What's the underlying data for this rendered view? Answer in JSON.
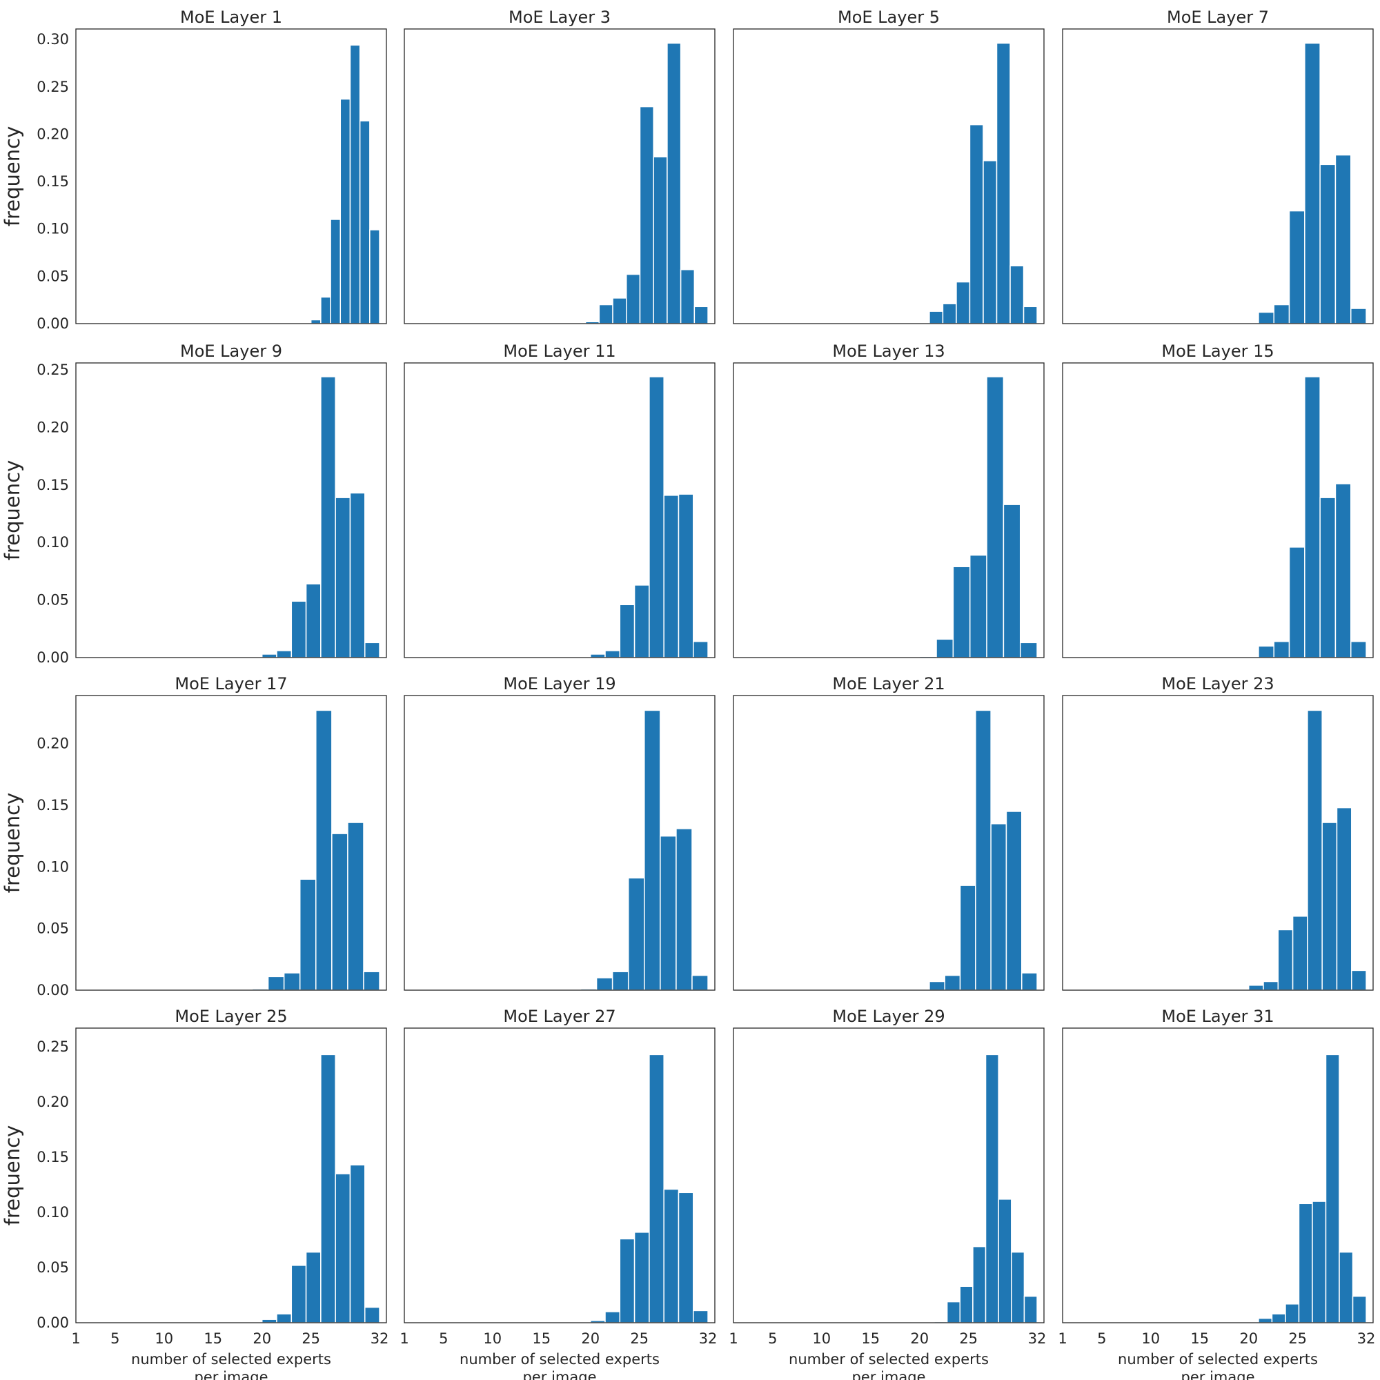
{
  "figure": {
    "bar_color": "#1f77b4",
    "bar_edge_color": "#ffffff",
    "axes_color": "#262626",
    "background": "#ffffff"
  },
  "chart_data": [
    {
      "type": "bar",
      "title": "MoE Layer 1",
      "bin_range": [
        25,
        32
      ],
      "values": [
        0.004,
        0.028,
        0.11,
        0.237,
        0.294,
        0.214,
        0.099
      ],
      "ylim": [
        0,
        0.311
      ],
      "yticks": [
        "0.00",
        "0.05",
        "0.10",
        "0.15",
        "0.20",
        "0.25",
        "0.30"
      ],
      "ylabel": "frequency",
      "xlabel": "",
      "xticks": []
    },
    {
      "type": "bar",
      "title": "MoE Layer 3",
      "bin_range": [
        19.5,
        32
      ],
      "values": [
        0.002,
        0.02,
        0.027,
        0.052,
        0.229,
        0.176,
        0.296,
        0.057,
        0.018
      ],
      "ylim": [
        0,
        0.311
      ],
      "yticks": [],
      "ylabel": "",
      "xlabel": "",
      "xticks": []
    },
    {
      "type": "bar",
      "title": "MoE Layer 5",
      "bin_range": [
        21,
        32
      ],
      "values": [
        0.013,
        0.021,
        0.044,
        0.21,
        0.172,
        0.296,
        0.061,
        0.018
      ],
      "ylim": [
        0,
        0.311
      ],
      "yticks": [],
      "ylabel": "",
      "xlabel": "",
      "xticks": []
    },
    {
      "type": "bar",
      "title": "MoE Layer 7",
      "bin_range": [
        21,
        32
      ],
      "values": [
        0.012,
        0.02,
        0.119,
        0.296,
        0.168,
        0.178,
        0.016
      ],
      "ylim": [
        0,
        0.311
      ],
      "yticks": [],
      "ylabel": "",
      "xlabel": "",
      "xticks": []
    },
    {
      "type": "bar",
      "title": "MoE Layer 9",
      "bin_range": [
        20,
        32
      ],
      "values": [
        0.003,
        0.006,
        0.049,
        0.064,
        0.244,
        0.139,
        0.143,
        0.013
      ],
      "ylim": [
        0,
        0.256
      ],
      "yticks": [
        "0.00",
        "0.05",
        "0.10",
        "0.15",
        "0.20",
        "0.25"
      ],
      "ylabel": "frequency",
      "xlabel": "",
      "xticks": []
    },
    {
      "type": "bar",
      "title": "MoE Layer 11",
      "bin_range": [
        20,
        32
      ],
      "values": [
        0.003,
        0.006,
        0.046,
        0.063,
        0.244,
        0.141,
        0.142,
        0.014
      ],
      "ylim": [
        0,
        0.256
      ],
      "yticks": [],
      "ylabel": "",
      "xlabel": "",
      "xticks": []
    },
    {
      "type": "bar",
      "title": "MoE Layer 13",
      "bin_range": [
        20,
        32
      ],
      "values": [
        0.001,
        0.016,
        0.079,
        0.089,
        0.244,
        0.133,
        0.013
      ],
      "ylim": [
        0,
        0.256
      ],
      "yticks": [],
      "ylabel": "",
      "xlabel": "",
      "xticks": []
    },
    {
      "type": "bar",
      "title": "MoE Layer 15",
      "bin_range": [
        21,
        32
      ],
      "values": [
        0.01,
        0.014,
        0.096,
        0.244,
        0.139,
        0.151,
        0.014
      ],
      "ylim": [
        0,
        0.256
      ],
      "yticks": [],
      "ylabel": "",
      "xlabel": "",
      "xticks": []
    },
    {
      "type": "bar",
      "title": "MoE Layer 17",
      "bin_range": [
        19,
        32
      ],
      "values": [
        0.001,
        0.011,
        0.014,
        0.09,
        0.227,
        0.127,
        0.136,
        0.015
      ],
      "ylim": [
        0,
        0.239
      ],
      "yticks": [
        "0.00",
        "0.05",
        "0.10",
        "0.15",
        "0.20"
      ],
      "ylabel": "frequency",
      "xlabel": "",
      "xticks": []
    },
    {
      "type": "bar",
      "title": "MoE Layer 19",
      "bin_range": [
        19,
        32
      ],
      "values": [
        0.001,
        0.01,
        0.015,
        0.091,
        0.227,
        0.125,
        0.131,
        0.012
      ],
      "ylim": [
        0,
        0.239
      ],
      "yticks": [],
      "ylabel": "",
      "xlabel": "",
      "xticks": []
    },
    {
      "type": "bar",
      "title": "MoE Layer 21",
      "bin_range": [
        21,
        32
      ],
      "values": [
        0.007,
        0.012,
        0.085,
        0.227,
        0.135,
        0.145,
        0.014
      ],
      "ylim": [
        0,
        0.239
      ],
      "yticks": [],
      "ylabel": "",
      "xlabel": "",
      "xticks": []
    },
    {
      "type": "bar",
      "title": "MoE Layer 23",
      "bin_range": [
        20,
        32
      ],
      "values": [
        0.004,
        0.007,
        0.049,
        0.06,
        0.227,
        0.136,
        0.148,
        0.016
      ],
      "ylim": [
        0,
        0.239
      ],
      "yticks": [],
      "ylabel": "",
      "xlabel": "",
      "xticks": []
    },
    {
      "type": "bar",
      "title": "MoE Layer 25",
      "bin_range": [
        20,
        32
      ],
      "values": [
        0.003,
        0.008,
        0.052,
        0.064,
        0.243,
        0.135,
        0.143,
        0.014
      ],
      "ylim": [
        0,
        0.267
      ],
      "yticks": [
        "0.00",
        "0.05",
        "0.10",
        "0.15",
        "0.20",
        "0.25"
      ],
      "ylabel": "frequency",
      "xlabel": "number of selected experts\nper image",
      "xticks": [
        "1",
        "5",
        "10",
        "15",
        "20",
        "25",
        "32"
      ]
    },
    {
      "type": "bar",
      "title": "MoE Layer 27",
      "bin_range": [
        20,
        32
      ],
      "values": [
        0.002,
        0.01,
        0.076,
        0.082,
        0.243,
        0.121,
        0.118,
        0.011
      ],
      "ylim": [
        0,
        0.267
      ],
      "yticks": [],
      "ylabel": "",
      "xlabel": "number of selected experts\nper image",
      "xticks": [
        "1",
        "5",
        "10",
        "15",
        "20",
        "25",
        "32"
      ]
    },
    {
      "type": "bar",
      "title": "MoE Layer 29",
      "bin_range": [
        21.5,
        32
      ],
      "values": [
        0.001,
        0.019,
        0.033,
        0.069,
        0.243,
        0.112,
        0.064,
        0.024
      ],
      "ylim": [
        0,
        0.267
      ],
      "yticks": [],
      "ylabel": "",
      "xlabel": "number of selected experts\nper image",
      "xticks": [
        "1",
        "5",
        "10",
        "15",
        "20",
        "25",
        "32"
      ]
    },
    {
      "type": "bar",
      "title": "MoE Layer 31",
      "bin_range": [
        21,
        32
      ],
      "values": [
        0.004,
        0.008,
        0.017,
        0.108,
        0.11,
        0.243,
        0.064,
        0.024
      ],
      "ylim": [
        0,
        0.267
      ],
      "yticks": [],
      "ylabel": "",
      "xlabel": "number of selected experts\nper image",
      "xticks": [
        "1",
        "5",
        "10",
        "15",
        "20",
        "25",
        "32"
      ]
    }
  ],
  "xlim": [
    1,
    32.7
  ]
}
